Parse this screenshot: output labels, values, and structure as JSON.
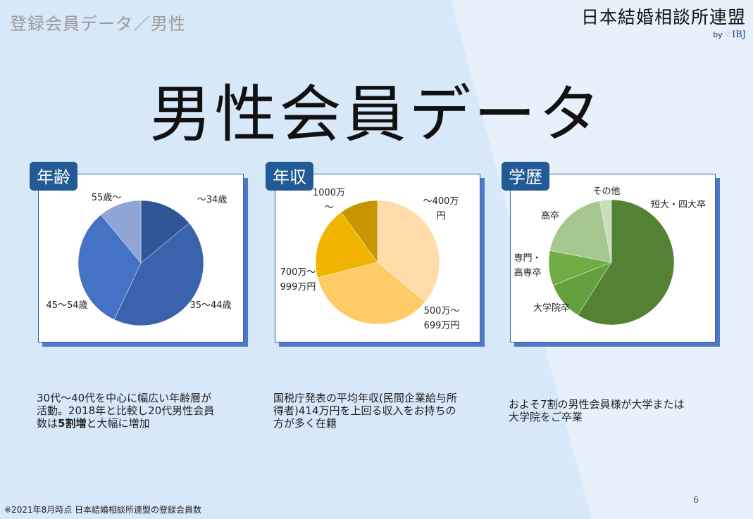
{
  "header": {
    "section_label": "登録会員データ／男性",
    "brand_name": "日本結婚相談所連盟",
    "brand_by": "by",
    "brand_heart": "♡",
    "brand_ibj": "IBJ"
  },
  "title": "男性会員データ",
  "cards": [
    {
      "tab": "年齢"
    },
    {
      "tab": "年収"
    },
    {
      "tab": "学歴"
    }
  ],
  "descriptions": {
    "age_line1": "30代〜40代を中心に幅広い年齢層が",
    "age_line2": "活動。2018年と比較し20代男性会員",
    "age_line3_pre": "数は",
    "age_line3_bold": "5割増",
    "age_line3_post": "と大幅に増加",
    "income_line1": "国税庁発表の平均年収(民間企業給与所",
    "income_line2": "得者)414万円を上回る収入をお持ちの",
    "income_line3": "方が多く在籍",
    "edu_line1": "およそ7割の男性会員様が大学または",
    "edu_line2": "大学院をご卒業"
  },
  "footnote": "※2021年8月時点 日本結婚相談所連盟の登録会員数",
  "page_number": "6",
  "colors": {
    "tab_bg": "#215a94",
    "card_border": "#3b5fa0",
    "card_shadow": "#4d79c8"
  },
  "chart_data": [
    {
      "type": "pie",
      "title": "年齢",
      "slices": [
        {
          "label": "〜34歳",
          "value": 14,
          "color": "#2f5597"
        },
        {
          "label": "35〜44歳",
          "value": 43,
          "color": "#3a63ad"
        },
        {
          "label": "45〜54歳",
          "value": 32,
          "color": "#4472c4"
        },
        {
          "label": "55歳〜",
          "value": 11,
          "color": "#8fa5d5"
        }
      ]
    },
    {
      "type": "pie",
      "title": "年収",
      "slices": [
        {
          "label": "〜400万円",
          "value": 36,
          "color": "#ffdca8"
        },
        {
          "label": "500万〜699万円",
          "value": 35,
          "color": "#ffcb66"
        },
        {
          "label": "700万〜999万円",
          "value": 19,
          "color": "#f1b400"
        },
        {
          "label": "1000万〜",
          "value": 10,
          "color": "#c89600"
        }
      ]
    },
    {
      "type": "pie",
      "title": "学歴",
      "slices": [
        {
          "label": "短大・四大卒",
          "value": 59,
          "color": "#548235"
        },
        {
          "label": "大学院卒",
          "value": 10,
          "color": "#64a03f"
        },
        {
          "label": "専門・高専卒",
          "value": 9,
          "color": "#70ad47"
        },
        {
          "label": "高卒",
          "value": 19,
          "color": "#a6c78f"
        },
        {
          "label": "その他",
          "value": 3,
          "color": "#c9dfba"
        }
      ]
    }
  ]
}
